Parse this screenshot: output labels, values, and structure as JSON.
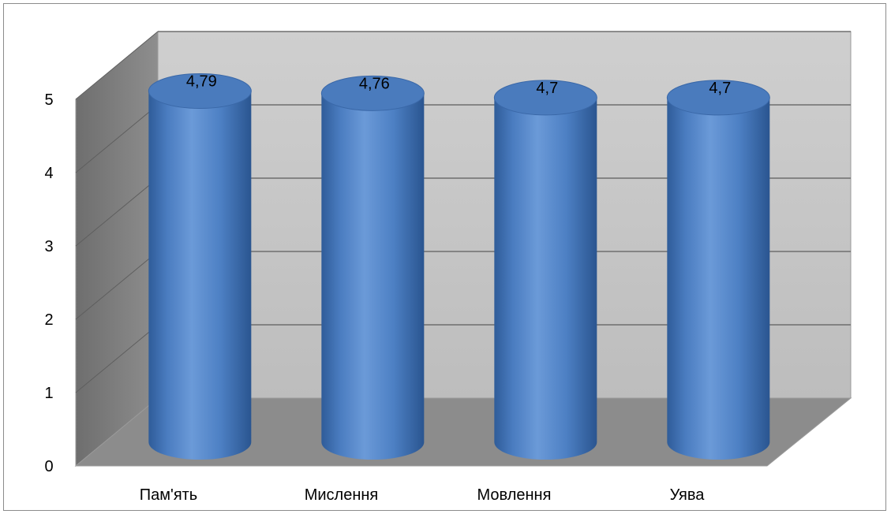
{
  "chart_data": {
    "type": "bar",
    "style": "3d-cylinder",
    "categories": [
      "Пам'ять",
      "Мислення",
      "Мовлення",
      "Уява"
    ],
    "values": [
      4.79,
      4.76,
      4.7,
      4.7
    ],
    "value_labels": [
      "4,79",
      "4,76",
      "4,7",
      "4,7"
    ],
    "y_ticks": [
      "0",
      "1",
      "2",
      "3",
      "4",
      "5"
    ],
    "ylim": [
      0,
      5
    ],
    "grid": true,
    "legend": "none",
    "colors": {
      "bar": "#4f81bd",
      "bar_dark": "#2c5590",
      "bar_light": "#7aa6dc",
      "wall": "#c8c8c8",
      "side_wall": "#7a7a7a",
      "floor": "#8c8c8c",
      "gridline": "#6e6e6e"
    }
  }
}
